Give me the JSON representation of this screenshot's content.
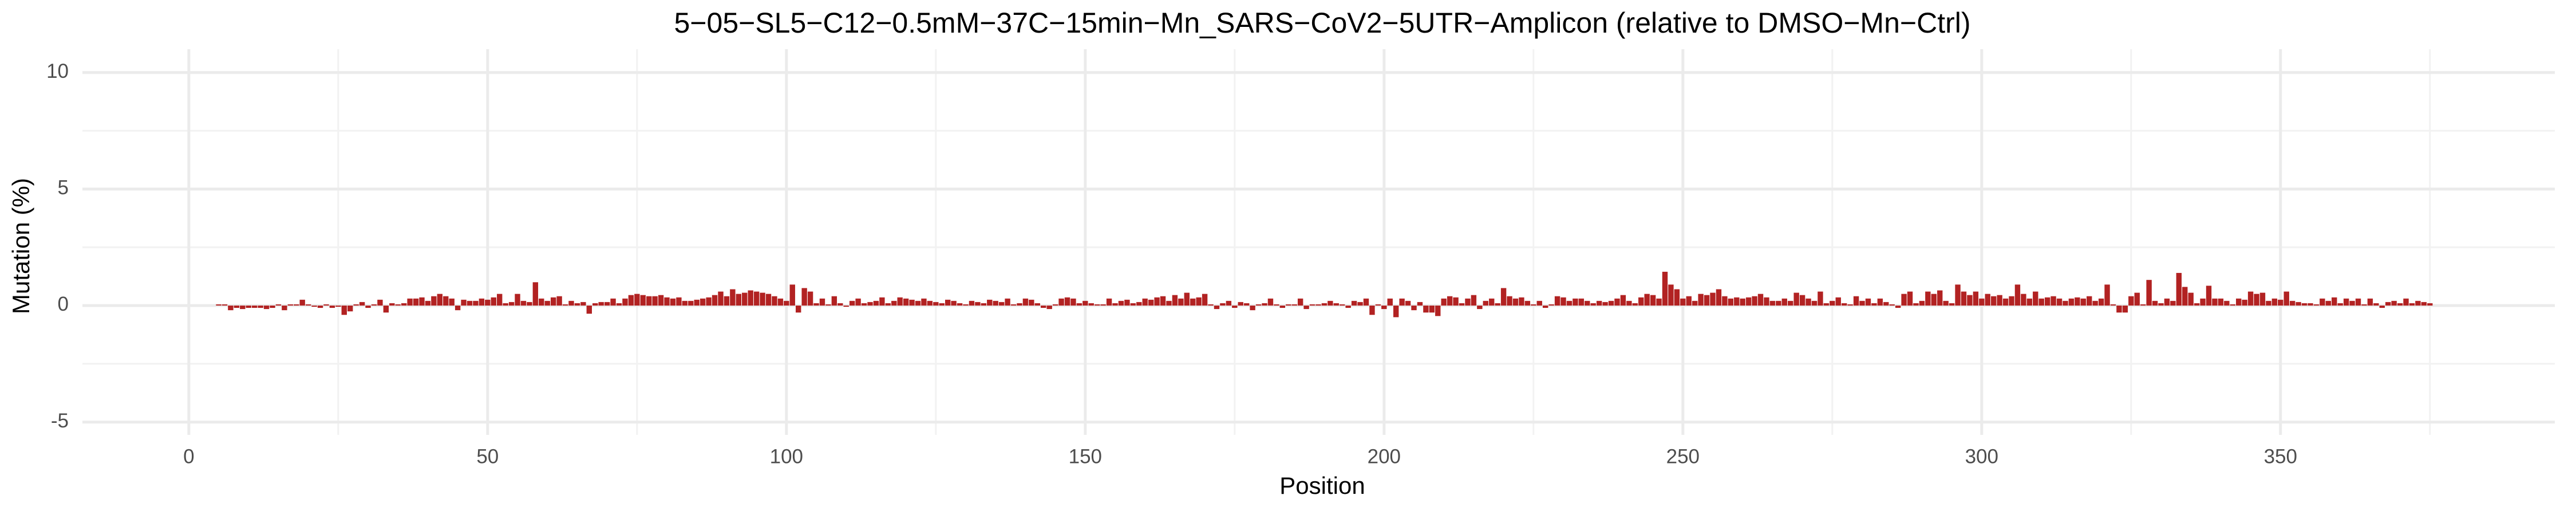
{
  "chart_data": {
    "type": "bar",
    "title": "5−05−SL5−C12−0.5mM−37C−15min−Mn_SARS−CoV2−5UTR−Amplicon (relative to DMSO−Mn−Ctrl)",
    "xlabel": "Position",
    "ylabel": "Mutation (%)",
    "color": "#b22222",
    "grid": true,
    "xlim": [
      -17.8,
      395.9
    ],
    "xticks": [
      0,
      50,
      100,
      150,
      200,
      250,
      300,
      350
    ],
    "xminor": [
      25,
      75,
      125,
      175,
      225,
      275,
      325,
      375
    ],
    "ylim": [
      -5.55,
      11
    ],
    "yticks": [
      -5,
      0,
      5,
      10
    ],
    "yminor": [
      -2.5,
      2.5,
      7.5
    ],
    "x": [
      5,
      6,
      7,
      8,
      9,
      10,
      11,
      12,
      13,
      14,
      15,
      16,
      17,
      18,
      19,
      20,
      21,
      22,
      23,
      24,
      25,
      26,
      27,
      28,
      29,
      30,
      31,
      32,
      33,
      34,
      35,
      36,
      37,
      38,
      39,
      40,
      41,
      42,
      43,
      44,
      45,
      46,
      47,
      48,
      49,
      50,
      51,
      52,
      53,
      54,
      55,
      56,
      57,
      58,
      59,
      60,
      61,
      62,
      63,
      64,
      65,
      66,
      67,
      68,
      69,
      70,
      71,
      72,
      73,
      74,
      75,
      76,
      77,
      78,
      79,
      80,
      81,
      82,
      83,
      84,
      85,
      86,
      87,
      88,
      89,
      90,
      91,
      92,
      93,
      94,
      95,
      96,
      97,
      98,
      99,
      100,
      101,
      102,
      103,
      104,
      105,
      106,
      107,
      108,
      109,
      110,
      111,
      112,
      113,
      114,
      115,
      116,
      117,
      118,
      119,
      120,
      121,
      122,
      123,
      124,
      125,
      126,
      127,
      128,
      129,
      130,
      131,
      132,
      133,
      134,
      135,
      136,
      137,
      138,
      139,
      140,
      141,
      142,
      143,
      144,
      145,
      146,
      147,
      148,
      149,
      150,
      151,
      152,
      153,
      154,
      155,
      156,
      157,
      158,
      159,
      160,
      161,
      162,
      163,
      164,
      165,
      166,
      167,
      168,
      169,
      170,
      171,
      172,
      173,
      174,
      175,
      176,
      177,
      178,
      179,
      180,
      181,
      182,
      183,
      184,
      185,
      186,
      187,
      188,
      189,
      190,
      191,
      192,
      193,
      194,
      195,
      196,
      197,
      198,
      199,
      200,
      201,
      202,
      203,
      204,
      205,
      206,
      207,
      208,
      209,
      210,
      211,
      212,
      213,
      214,
      215,
      216,
      217,
      218,
      219,
      220,
      221,
      222,
      223,
      224,
      225,
      226,
      227,
      228,
      229,
      230,
      231,
      232,
      233,
      234,
      235,
      236,
      237,
      238,
      239,
      240,
      241,
      242,
      243,
      244,
      245,
      246,
      247,
      248,
      249,
      250,
      251,
      252,
      253,
      254,
      255,
      256,
      257,
      258,
      259,
      260,
      261,
      262,
      263,
      264,
      265,
      266,
      267,
      268,
      269,
      270,
      271,
      272,
      273,
      274,
      275,
      276,
      277,
      278,
      279,
      280,
      281,
      282,
      283,
      284,
      285,
      286,
      287,
      288,
      289,
      290,
      291,
      292,
      293,
      294,
      295,
      296,
      297,
      298,
      299,
      300,
      301,
      302,
      303,
      304,
      305,
      306,
      307,
      308,
      309,
      310,
      311,
      312,
      313,
      314,
      315,
      316,
      317,
      318,
      319,
      320,
      321,
      322,
      323,
      324,
      325,
      326,
      327,
      328,
      329,
      330,
      331,
      332,
      333,
      334,
      335,
      336,
      337,
      338,
      339,
      340,
      341,
      342,
      343,
      344,
      345,
      346,
      347,
      348,
      349,
      350,
      351,
      352,
      353,
      354,
      355,
      356,
      357,
      358,
      359,
      360,
      361,
      362,
      363,
      364,
      365,
      366,
      367,
      368,
      369,
      370,
      371,
      372,
      373,
      374,
      375
    ],
    "values": [
      0.05,
      0.05,
      -0.2,
      -0.1,
      -0.15,
      -0.1,
      -0.1,
      -0.1,
      -0.15,
      -0.1,
      0.05,
      -0.2,
      0.05,
      0.05,
      0.25,
      0.05,
      -0.05,
      -0.1,
      0.05,
      -0.1,
      -0.05,
      -0.4,
      -0.25,
      0.05,
      0.15,
      -0.1,
      0.05,
      0.25,
      -0.3,
      0.1,
      0.05,
      0.1,
      0.3,
      0.3,
      0.35,
      0.2,
      0.4,
      0.5,
      0.4,
      0.3,
      -0.2,
      0.25,
      0.2,
      0.2,
      0.3,
      0.25,
      0.35,
      0.5,
      0.1,
      0.15,
      0.5,
      0.2,
      0.15,
      1.0,
      0.3,
      0.2,
      0.35,
      0.4,
      0.05,
      0.2,
      0.1,
      0.15,
      -0.35,
      0.1,
      0.15,
      0.15,
      0.3,
      0.1,
      0.3,
      0.45,
      0.5,
      0.45,
      0.4,
      0.4,
      0.45,
      0.35,
      0.3,
      0.35,
      0.2,
      0.2,
      0.25,
      0.3,
      0.35,
      0.45,
      0.6,
      0.4,
      0.7,
      0.5,
      0.55,
      0.65,
      0.6,
      0.55,
      0.5,
      0.4,
      0.3,
      0.2,
      0.9,
      -0.3,
      0.75,
      0.6,
      0.1,
      0.3,
      0.05,
      0.4,
      0.1,
      -0.05,
      0.2,
      0.3,
      0.1,
      0.15,
      0.2,
      0.35,
      0.1,
      0.2,
      0.35,
      0.3,
      0.25,
      0.2,
      0.3,
      0.2,
      0.15,
      0.1,
      0.25,
      0.2,
      0.1,
      0.05,
      0.2,
      0.15,
      0.1,
      0.25,
      0.2,
      0.15,
      0.3,
      0.05,
      0.1,
      0.3,
      0.25,
      0.1,
      -0.1,
      -0.15,
      0.05,
      0.3,
      0.35,
      0.3,
      0.1,
      0.2,
      0.1,
      0.05,
      0.05,
      0.3,
      0.1,
      0.2,
      0.25,
      0.1,
      0.15,
      0.3,
      0.25,
      0.35,
      0.4,
      0.2,
      0.45,
      0.3,
      0.55,
      0.3,
      0.35,
      0.5,
      0.05,
      -0.15,
      0.1,
      0.2,
      -0.1,
      0.15,
      0.1,
      -0.2,
      0.05,
      0.1,
      0.3,
      0.05,
      -0.1,
      0.05,
      0.05,
      0.3,
      -0.15,
      0.05,
      0.05,
      0.1,
      0.2,
      0.1,
      0.05,
      -0.1,
      0.2,
      0.15,
      0.3,
      -0.4,
      0.05,
      -0.15,
      0.3,
      -0.5,
      0.3,
      0.2,
      -0.2,
      0.15,
      -0.3,
      -0.3,
      -0.45,
      0.3,
      0.4,
      0.35,
      0.1,
      0.3,
      0.45,
      -0.15,
      0.2,
      0.3,
      0.1,
      0.75,
      0.4,
      0.3,
      0.35,
      0.2,
      0.05,
      0.2,
      -0.1,
      0.05,
      0.4,
      0.35,
      0.2,
      0.3,
      0.3,
      0.2,
      0.1,
      0.2,
      0.15,
      0.2,
      0.3,
      0.45,
      0.2,
      0.1,
      0.35,
      0.5,
      0.45,
      0.3,
      1.45,
      0.9,
      0.7,
      0.3,
      0.4,
      0.2,
      0.5,
      0.45,
      0.55,
      0.7,
      0.4,
      0.3,
      0.35,
      0.3,
      0.35,
      0.4,
      0.5,
      0.35,
      0.2,
      0.2,
      0.3,
      0.2,
      0.55,
      0.45,
      0.3,
      0.2,
      0.6,
      0.1,
      0.2,
      0.35,
      0.1,
      0.05,
      0.4,
      0.2,
      0.3,
      0.1,
      0.3,
      0.15,
      0.05,
      -0.1,
      0.5,
      0.6,
      0.1,
      0.2,
      0.6,
      0.5,
      0.65,
      0.2,
      0.1,
      0.9,
      0.6,
      0.45,
      0.6,
      0.3,
      0.5,
      0.4,
      0.45,
      0.3,
      0.4,
      0.9,
      0.5,
      0.3,
      0.6,
      0.3,
      0.35,
      0.4,
      0.3,
      0.2,
      0.3,
      0.35,
      0.3,
      0.4,
      0.2,
      0.3,
      0.9,
      0.05,
      -0.3,
      -0.3,
      0.4,
      0.55,
      0.05,
      1.1,
      0.2,
      0.1,
      0.3,
      0.2,
      1.4,
      0.8,
      0.55,
      0.1,
      0.3,
      0.85,
      0.3,
      0.3,
      0.2,
      0.05,
      0.3,
      0.25,
      0.6,
      0.5,
      0.55,
      0.2,
      0.3,
      0.25,
      0.6,
      0.2,
      0.15,
      0.1,
      0.1,
      0.05,
      0.3,
      0.2,
      0.35,
      0.1,
      0.3,
      0.2,
      0.3,
      0.05,
      0.3,
      0.1,
      -0.1,
      0.15,
      0.2,
      0.1,
      0.3,
      0.1,
      0.2,
      0.15,
      0.1
    ]
  }
}
